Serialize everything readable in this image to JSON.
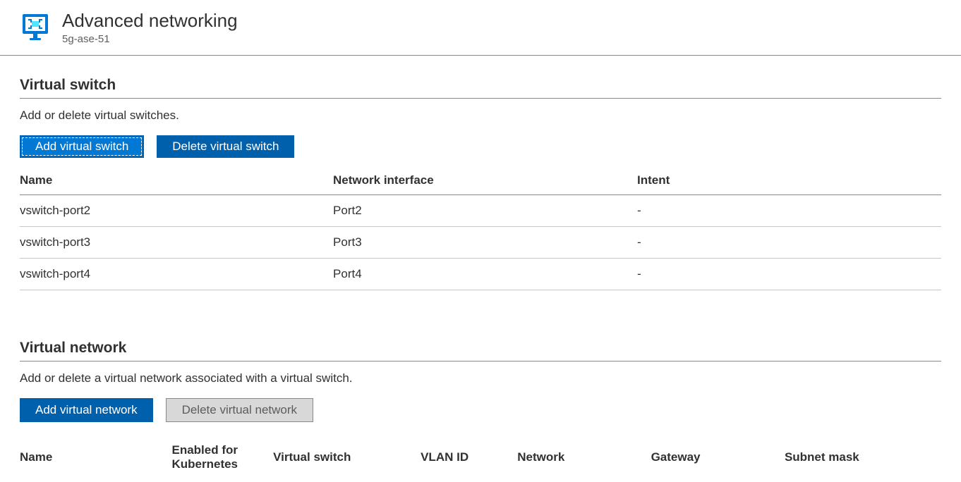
{
  "header": {
    "title": "Advanced networking",
    "subtitle": "5g-ase-51"
  },
  "virtual_switch": {
    "section_title": "Virtual switch",
    "description": "Add or delete virtual switches.",
    "add_button": "Add virtual switch",
    "delete_button": "Delete virtual switch",
    "columns": [
      "Name",
      "Network interface",
      "Intent"
    ],
    "rows": [
      {
        "name": "vswitch-port2",
        "interface": "Port2",
        "intent": "-"
      },
      {
        "name": "vswitch-port3",
        "interface": "Port3",
        "intent": "-"
      },
      {
        "name": "vswitch-port4",
        "interface": "Port4",
        "intent": "-"
      }
    ]
  },
  "virtual_network": {
    "section_title": "Virtual network",
    "description": "Add or delete a virtual network associated with a virtual switch.",
    "add_button": "Add virtual network",
    "delete_button": "Delete virtual network",
    "columns": [
      "Name",
      "Enabled for Kubernetes",
      "Virtual switch",
      "VLAN ID",
      "Network",
      "Gateway",
      "Subnet mask"
    ]
  },
  "colors": {
    "primary_button": "#0060ac",
    "focused_button": "#0078d4",
    "disabled_button_bg": "#d8d8d8",
    "disabled_button_border": "#8a8886",
    "text": "#323130",
    "subtext": "#605e5c",
    "border": "#8a8886",
    "row_border": "#c8c6c4",
    "icon_blue": "#0078d4",
    "icon_cyan": "#50e6ff"
  }
}
